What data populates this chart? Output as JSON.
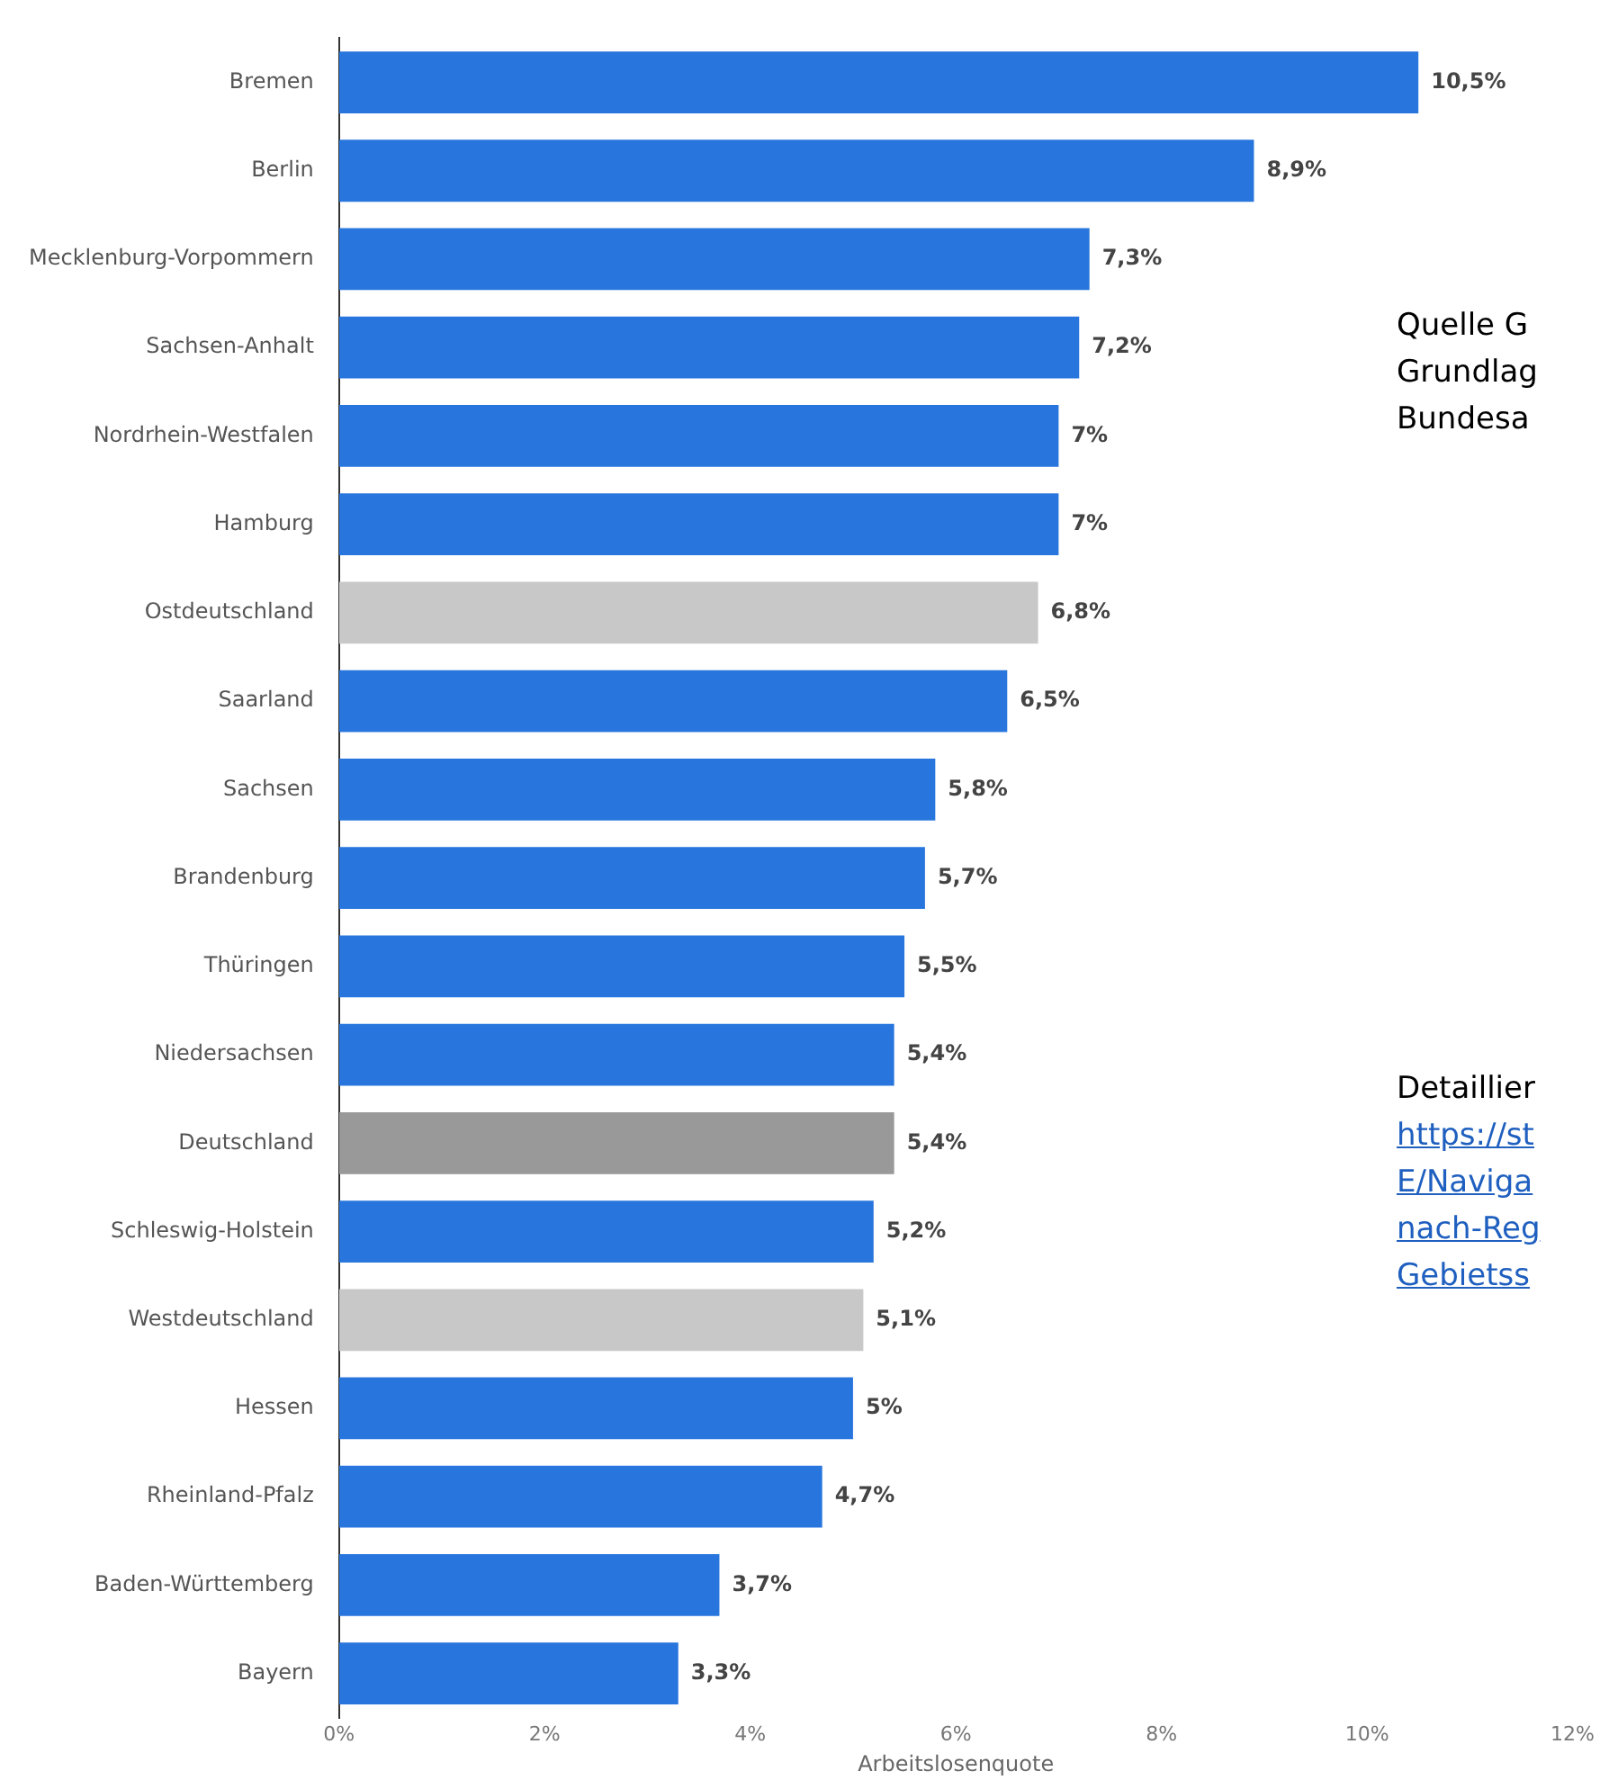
{
  "chart_data": {
    "type": "bar",
    "orientation": "horizontal",
    "xlabel": "Arbeitslosenquote",
    "categories": [
      "Bremen",
      "Berlin",
      "Mecklenburg-Vorpommern",
      "Sachsen-Anhalt",
      "Nordrhein-Westfalen",
      "Hamburg",
      "Ostdeutschland",
      "Saarland",
      "Sachsen",
      "Brandenburg",
      "Thüringen",
      "Niedersachsen",
      "Deutschland",
      "Schleswig-Holstein",
      "Westdeutschland",
      "Hessen",
      "Rheinland-Pfalz",
      "Baden-Württemberg",
      "Bayern"
    ],
    "values": [
      10.5,
      8.9,
      7.3,
      7.2,
      7,
      7,
      6.8,
      6.5,
      5.8,
      5.7,
      5.5,
      5.4,
      5.4,
      5.2,
      5.1,
      5,
      4.7,
      3.7,
      3.3
    ],
    "colors": [
      "#2876dd",
      "#2876dd",
      "#2876dd",
      "#2876dd",
      "#2876dd",
      "#2876dd",
      "#c8c8c8",
      "#2876dd",
      "#2876dd",
      "#2876dd",
      "#2876dd",
      "#2876dd",
      "#999999",
      "#2876dd",
      "#c8c8c8",
      "#2876dd",
      "#2876dd",
      "#2876dd",
      "#2876dd"
    ],
    "value_labels": [
      "10,5%",
      "8,9%",
      "7,3%",
      "7,2%",
      "7%",
      "7%",
      "6,8%",
      "6,5%",
      "5,8%",
      "5,7%",
      "5,5%",
      "5,4%",
      "5,4%",
      "5,2%",
      "5,1%",
      "5%",
      "4,7%",
      "3,7%",
      "3,3%"
    ],
    "xlim": [
      0,
      12
    ],
    "xticks": [
      {
        "value": 0,
        "label": "0%"
      },
      {
        "value": 2,
        "label": "2%"
      },
      {
        "value": 4,
        "label": "4%"
      },
      {
        "value": 6,
        "label": "6%"
      },
      {
        "value": 8,
        "label": "8%"
      },
      {
        "value": 10,
        "label": "10%"
      },
      {
        "value": 12,
        "label": "12%"
      }
    ],
    "grid": false,
    "annotations": [
      "Quelle G\nGrundlag\nBundesa",
      "Detaillier\nhttps://st\nE/Naviga\nnach-Reg\nGebietss"
    ]
  }
}
